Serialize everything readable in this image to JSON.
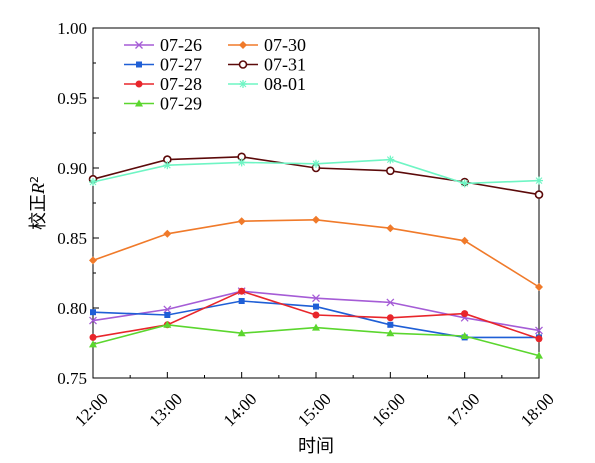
{
  "chart_data": {
    "type": "line",
    "title": "",
    "xlabel": "时间",
    "ylabel_prefix": "校正",
    "ylabel_symbol": "R",
    "ylabel_superscript": "2",
    "categories": [
      "12:00",
      "13:00",
      "14:00",
      "15:00",
      "16:00",
      "17:00",
      "18:00"
    ],
    "ylim": [
      0.75,
      1.0
    ],
    "yticks": [
      "0.75",
      "0.80",
      "0.85",
      "0.90",
      "0.95",
      "1.00"
    ],
    "grid": false,
    "legend_position": "top-left",
    "series": [
      {
        "name": "07-26",
        "color": "#a55cd6",
        "marker": "x",
        "values": [
          0.791,
          0.799,
          0.812,
          0.807,
          0.804,
          0.793,
          0.784
        ]
      },
      {
        "name": "07-27",
        "color": "#1f5fd6",
        "marker": "square",
        "values": [
          0.797,
          0.795,
          0.805,
          0.801,
          0.788,
          0.779,
          0.779
        ]
      },
      {
        "name": "07-28",
        "color": "#e8262b",
        "marker": "circle",
        "values": [
          0.779,
          0.788,
          0.812,
          0.795,
          0.793,
          0.796,
          0.778
        ]
      },
      {
        "name": "07-29",
        "color": "#5bd62e",
        "marker": "triangle",
        "values": [
          0.774,
          0.788,
          0.782,
          0.786,
          0.782,
          0.78,
          0.766
        ]
      },
      {
        "name": "07-30",
        "color": "#f07a2a",
        "marker": "diamond",
        "values": [
          0.834,
          0.853,
          0.862,
          0.863,
          0.857,
          0.848,
          0.815
        ]
      },
      {
        "name": "07-31",
        "color": "#5c0a0a",
        "marker": "open-circle",
        "values": [
          0.892,
          0.906,
          0.908,
          0.9,
          0.898,
          0.89,
          0.881
        ]
      },
      {
        "name": "08-01",
        "color": "#6ff5c4",
        "marker": "star",
        "values": [
          0.89,
          0.902,
          0.904,
          0.903,
          0.906,
          0.889,
          0.891
        ]
      }
    ]
  }
}
